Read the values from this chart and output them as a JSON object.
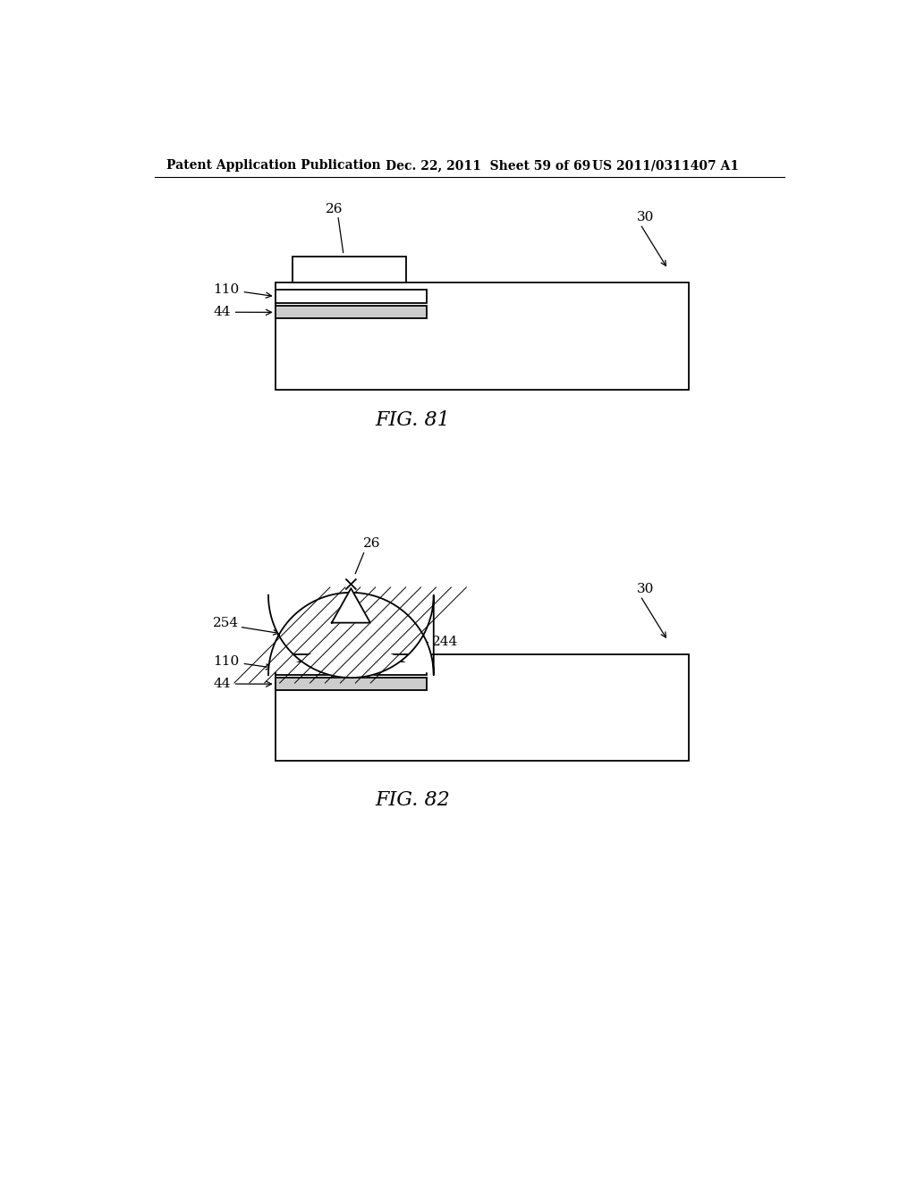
{
  "bg_color": "#ffffff",
  "line_color": "#000000",
  "header_left": "Patent Application Publication",
  "header_mid": "Dec. 22, 2011  Sheet 59 of 69",
  "header_right": "US 2011/0311407 A1",
  "fig1_label": "FIG. 81",
  "fig2_label": "FIG. 82"
}
